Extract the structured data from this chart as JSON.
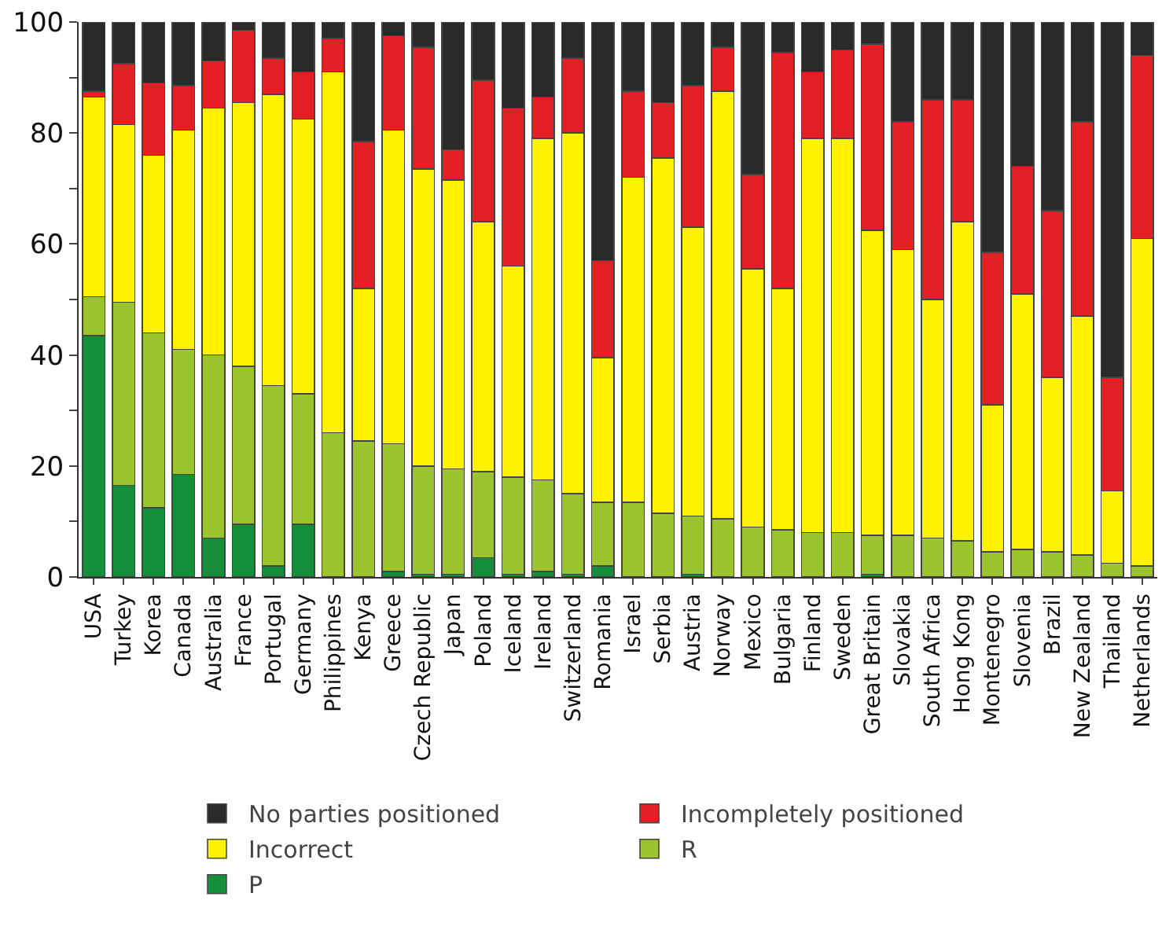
{
  "chart_data": {
    "type": "bar",
    "stacked": true,
    "categories": [
      "USA",
      "Turkey",
      "Korea",
      "Canada",
      "Australia",
      "France",
      "Portugal",
      "Germany",
      "Philippines",
      "Kenya",
      "Greece",
      "Czech Republic",
      "Japan",
      "Poland",
      "Iceland",
      "Ireland",
      "Switzerland",
      "Romania",
      "Israel",
      "Serbia",
      "Austria",
      "Norway",
      "Mexico",
      "Bulgaria",
      "Finland",
      "Sweden",
      "Great Britain",
      "Slovakia",
      "South Africa",
      "Hong Kong",
      "Montenegro",
      "Slovenia",
      "Brazil",
      "New Zealand",
      "Thailand",
      "Netherlands"
    ],
    "series": [
      {
        "name": "P",
        "color": "#168f3d",
        "values": [
          43.5,
          16.5,
          12.5,
          18.5,
          7,
          9.5,
          2,
          9.5,
          0,
          0,
          1,
          0.5,
          0.5,
          3.5,
          0.5,
          1,
          0.5,
          2,
          0,
          0,
          0.5,
          0,
          0,
          0,
          0,
          0,
          0.5,
          0,
          0,
          0,
          0,
          0,
          0,
          0,
          0,
          0
        ]
      },
      {
        "name": "R",
        "color": "#9bc42f",
        "values": [
          7,
          33,
          31.5,
          22.5,
          33,
          28.5,
          32.5,
          23.5,
          26,
          24.5,
          23,
          19.5,
          19,
          15.5,
          17.5,
          16.5,
          14.5,
          11.5,
          13.5,
          11.5,
          10.5,
          10.5,
          9,
          8.5,
          8,
          8,
          7,
          7.5,
          7,
          6.5,
          4.5,
          5,
          4.5,
          4,
          2.5,
          2
        ]
      },
      {
        "name": "Incorrect",
        "color": "#fff200",
        "values": [
          36,
          32,
          32,
          39.5,
          44.5,
          47.5,
          52.5,
          49.5,
          65,
          27.5,
          56.5,
          53.5,
          52,
          45,
          38,
          61.5,
          65,
          26,
          58.5,
          64,
          52,
          77,
          46.5,
          43.5,
          71,
          71,
          55,
          51.5,
          43,
          57.5,
          26.5,
          46,
          31.5,
          43,
          13,
          59
        ]
      },
      {
        "name": "Incompletely positioned",
        "color": "#e41f26",
        "values": [
          1,
          11,
          13,
          8,
          8.5,
          13,
          6.5,
          8.5,
          6,
          26.5,
          17,
          22,
          5.5,
          25.5,
          28.5,
          7.5,
          13.5,
          17.5,
          15.5,
          10,
          25.5,
          8,
          17,
          42.5,
          12,
          16,
          33.5,
          23,
          36,
          22,
          27.5,
          23,
          30,
          35,
          20.5,
          33
        ]
      },
      {
        "name": "No parties positioned",
        "color": "#2a2a2a",
        "values": [
          12.5,
          7.5,
          11,
          11.5,
          7,
          1.5,
          6.5,
          9,
          3,
          21.5,
          2.5,
          4.5,
          23,
          10.5,
          15.5,
          13.5,
          6.5,
          43,
          12.5,
          14.5,
          11.5,
          4.5,
          27.5,
          5.5,
          9,
          5,
          4,
          18,
          14,
          14,
          41.5,
          26,
          34,
          18,
          64,
          6
        ]
      }
    ],
    "ylim": [
      0,
      100
    ],
    "yticks": [
      0,
      {
        "value": 10,
        "label": null
      },
      20,
      {
        "value": 30,
        "label": null
      },
      40,
      {
        "value": 50,
        "label": null
      },
      60,
      {
        "value": 70,
        "label": null
      },
      80,
      {
        "value": 90,
        "label": null
      },
      100
    ],
    "grid": false,
    "legend": "bottom"
  }
}
